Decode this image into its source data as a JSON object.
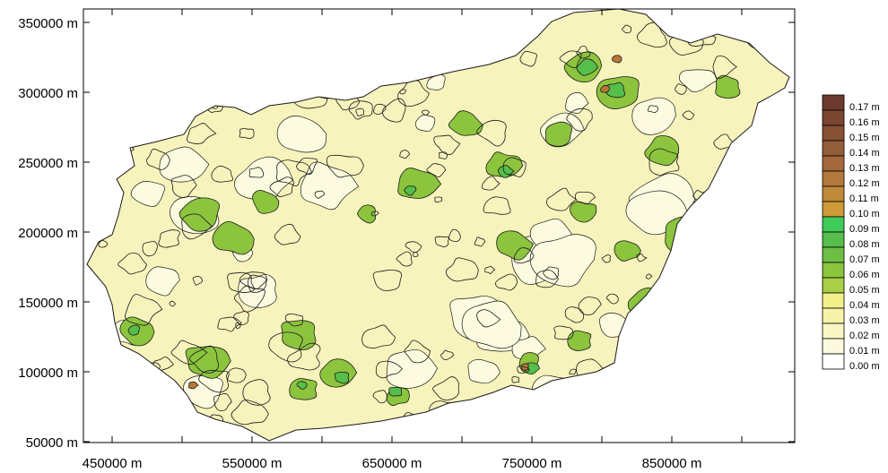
{
  "map": {
    "y_ticks": [
      "350000 m",
      "300000 m",
      "250000 m",
      "200000 m",
      "150000 m",
      "100000 m",
      "50000 m"
    ],
    "x_ticks": [
      "450000 m",
      "550000 m",
      "650000 m",
      "750000 m",
      "850000 m"
    ]
  },
  "legend": {
    "items": [
      {
        "label": "0.17 m",
        "color": "#6b3a2e"
      },
      {
        "label": "0.16 m",
        "color": "#7a4632"
      },
      {
        "label": "0.15 m",
        "color": "#875136"
      },
      {
        "label": "0.14 m",
        "color": "#945d3a"
      },
      {
        "label": "0.13 m",
        "color": "#a3693c"
      },
      {
        "label": "0.12 m",
        "color": "#b17a3c"
      },
      {
        "label": "0.11 m",
        "color": "#c08a3a"
      },
      {
        "label": "0.10 m",
        "color": "#cf9a38"
      },
      {
        "label": "0.09 m",
        "color": "#3fca5a"
      },
      {
        "label": "0.08 m",
        "color": "#56be4a"
      },
      {
        "label": "0.07 m",
        "color": "#6ebe46"
      },
      {
        "label": "0.06 m",
        "color": "#8cc43e"
      },
      {
        "label": "0.05 m",
        "color": "#a8cf45"
      },
      {
        "label": "0.04 m",
        "color": "#f2f08a"
      },
      {
        "label": "0.03 m",
        "color": "#f5f3a8"
      },
      {
        "label": "0.02 m",
        "color": "#f8f6c4"
      },
      {
        "label": "0.01 m",
        "color": "#fbfadf"
      },
      {
        "label": "0.00 m",
        "color": "#ffffff"
      }
    ]
  },
  "colors": {
    "land_base": "#f7f3bc",
    "land_light": "#fcfbe0",
    "green_mid": "#8cc43e",
    "green_dark": "#56be4a",
    "brown": "#b8763a",
    "contour": "#1a1a1a"
  }
}
